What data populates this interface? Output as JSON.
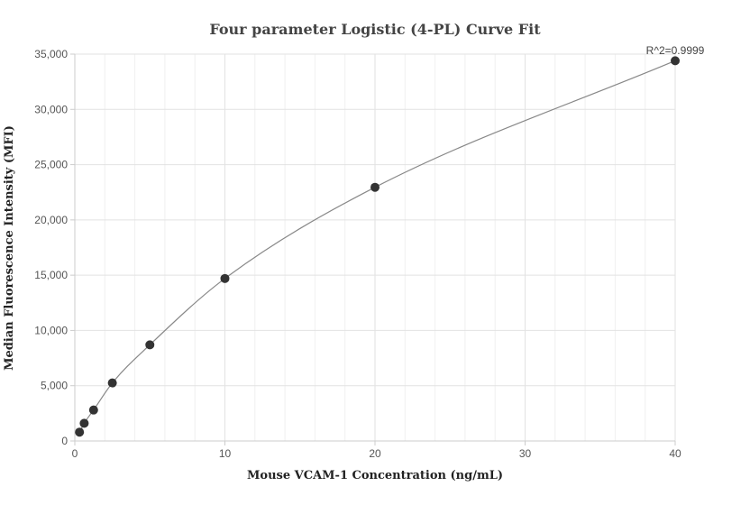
{
  "chart_data": {
    "type": "scatter",
    "title": "Four parameter Logistic (4-PL) Curve Fit",
    "xlabel": "Mouse VCAM-1 Concentration (ng/mL)",
    "ylabel": "Median Fluorescence Intensity (MFI)",
    "xlim": [
      0,
      40
    ],
    "ylim": [
      0,
      35000
    ],
    "xticks": [
      0,
      10,
      20,
      30,
      40
    ],
    "xtick_labels": [
      "0",
      "10",
      "20",
      "30",
      "40"
    ],
    "yticks": [
      0,
      5000,
      10000,
      15000,
      20000,
      25000,
      30000,
      35000
    ],
    "ytick_labels": [
      "0",
      "5,000",
      "10,000",
      "15,000",
      "20,000",
      "25,000",
      "30,000",
      "35,000"
    ],
    "grid": true,
    "series": [
      {
        "points": [
          {
            "x": 0.3125,
            "y": 800
          },
          {
            "x": 0.625,
            "y": 1600
          },
          {
            "x": 1.25,
            "y": 2800
          },
          {
            "x": 2.5,
            "y": 5250
          },
          {
            "x": 5,
            "y": 8700
          },
          {
            "x": 10,
            "y": 14700
          },
          {
            "x": 20,
            "y": 22950
          },
          {
            "x": 40,
            "y": 34400
          }
        ],
        "color": "#333333"
      }
    ],
    "fit_curve": {
      "color": "#888888"
    },
    "annotations": [
      {
        "text": "R^2=0.9999"
      }
    ]
  }
}
